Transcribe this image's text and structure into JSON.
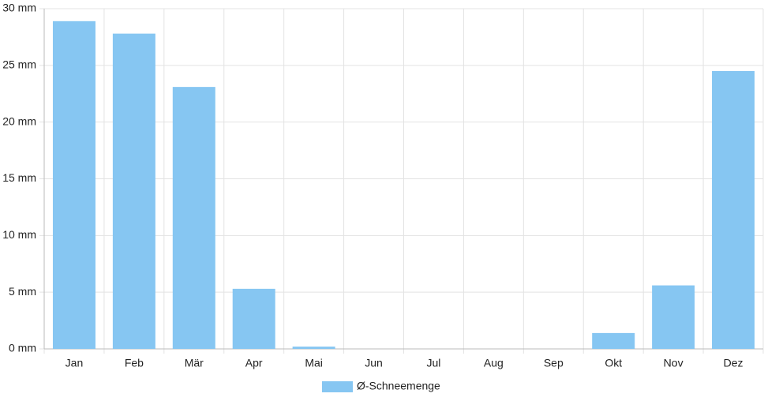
{
  "chart_data": {
    "type": "bar",
    "categories": [
      "Jan",
      "Feb",
      "Mär",
      "Apr",
      "Mai",
      "Jun",
      "Jul",
      "Aug",
      "Sep",
      "Okt",
      "Nov",
      "Dez"
    ],
    "series": [
      {
        "name": "Ø-Schneemenge",
        "color": "#86c6f2",
        "values": [
          28.9,
          27.8,
          23.1,
          5.3,
          0.2,
          0,
          0,
          0,
          0,
          1.4,
          5.6,
          24.5
        ]
      }
    ],
    "ylim": [
      0,
      30
    ],
    "yticks": [
      {
        "value": 0,
        "label": "0 mm"
      },
      {
        "value": 5,
        "label": "5 mm"
      },
      {
        "value": 10,
        "label": "10 mm"
      },
      {
        "value": 15,
        "label": "15 mm"
      },
      {
        "value": 20,
        "label": "20 mm"
      },
      {
        "value": 25,
        "label": "25 mm"
      },
      {
        "value": 30,
        "label": "30 mm"
      }
    ],
    "grid": true,
    "legend": "bottom"
  }
}
